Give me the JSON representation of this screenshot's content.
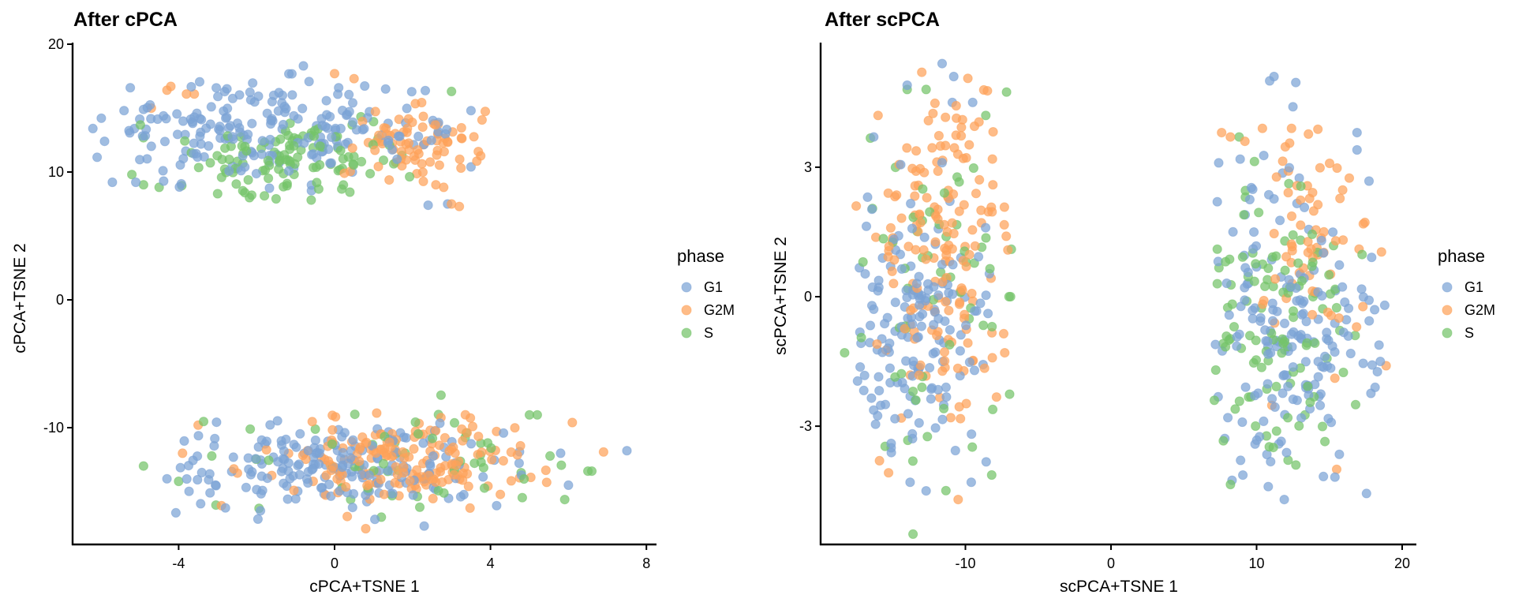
{
  "chart_data": [
    {
      "type": "scatter",
      "title": "After cPCA",
      "xlabel": "cPCA+TSNE 1",
      "ylabel": "cPCA+TSNE 2",
      "xlim": [
        -6.8,
        8.2
      ],
      "ylim": [
        -19.5,
        20
      ],
      "xticks": [
        -4,
        0,
        4,
        8
      ],
      "xtick_labels": [
        "-4",
        "0",
        "4",
        "8"
      ],
      "yticks": [
        -10,
        0,
        10,
        20
      ],
      "ytick_labels": [
        "-10",
        "0",
        "10",
        "20"
      ],
      "grid": false,
      "legend": {
        "title": "phase",
        "position": "right",
        "entries": [
          "G1",
          "G2M",
          "S"
        ]
      },
      "series": [
        {
          "name": "G1",
          "color": "#7BA3D5",
          "clusters": [
            {
              "cx": -2.2,
              "cy": 13.2,
              "sx": 1.9,
              "sy": 2.2,
              "n": 160,
              "xmin": -6.2,
              "xmax": 0.8,
              "ymin": 8.5,
              "ymax": 18.3
            },
            {
              "cx": 1.2,
              "cy": 13.0,
              "sx": 1.4,
              "sy": 1.6,
              "n": 40,
              "xmin": -0.5,
              "xmax": 3.6,
              "ymin": 7.3,
              "ymax": 16.8
            },
            {
              "cx": 0.0,
              "cy": -13.0,
              "sx": 2.2,
              "sy": 1.6,
              "n": 190,
              "xmin": -4.6,
              "xmax": 7.6,
              "ymin": -17.8,
              "ymax": -7.2
            }
          ],
          "points": [
            [
              -6.2,
              13.4
            ],
            [
              -5.9,
              12.4
            ],
            [
              -5.4,
              14.8
            ],
            [
              -5.7,
              9.2
            ],
            [
              -5.1,
              9.2
            ],
            [
              -4.4,
              10.1
            ],
            [
              -3.6,
              14.3
            ],
            [
              2.4,
              7.4
            ],
            [
              2.9,
              7.5
            ],
            [
              3.5,
              10.4
            ],
            [
              3.5,
              14.8
            ],
            [
              -0.8,
              18.3
            ],
            [
              7.5,
              -11.8
            ],
            [
              -4.3,
              -14.0
            ],
            [
              2.3,
              -17.7
            ],
            [
              -1.9,
              -16.5
            ],
            [
              6.0,
              -14.5
            ],
            [
              5.8,
              -12.0
            ]
          ]
        },
        {
          "name": "G2M",
          "color": "#FDA25A",
          "clusters": [
            {
              "cx": 2.2,
              "cy": 12.3,
              "sx": 1.1,
              "sy": 1.4,
              "n": 75,
              "xmin": 0.2,
              "xmax": 3.9,
              "ymin": 9.0,
              "ymax": 17.7
            },
            {
              "cx": 1.8,
              "cy": -12.6,
              "sx": 1.7,
              "sy": 1.8,
              "n": 170,
              "xmin": -3.5,
              "xmax": 6.9,
              "ymin": -17.9,
              "ymax": -7.2
            }
          ],
          "points": [
            [
              -4.3,
              16.4
            ],
            [
              -4.2,
              16.7
            ],
            [
              -3.8,
              16.1
            ],
            [
              -3.6,
              16.1
            ],
            [
              -4.7,
              15.0
            ],
            [
              0.0,
              17.7
            ],
            [
              0.5,
              17.3
            ],
            [
              2.6,
              9.0
            ],
            [
              2.8,
              8.8
            ],
            [
              3.0,
              7.5
            ],
            [
              3.2,
              7.3
            ],
            [
              -3.5,
              -9.8
            ],
            [
              -3.9,
              -12.0
            ],
            [
              -2.9,
              -16.1
            ],
            [
              6.9,
              -11.9
            ],
            [
              6.1,
              -9.6
            ],
            [
              0.8,
              -17.9
            ]
          ]
        },
        {
          "name": "S",
          "color": "#75C469",
          "clusters": [
            {
              "cx": -0.8,
              "cy": 11.2,
              "sx": 1.4,
              "sy": 1.6,
              "n": 110,
              "xmin": -5.2,
              "xmax": 2.4,
              "ymin": 7.8,
              "ymax": 18.0
            },
            {
              "cx": 1.6,
              "cy": -12.8,
              "sx": 2.0,
              "sy": 2.0,
              "n": 55,
              "xmin": -4.9,
              "xmax": 6.6,
              "ymin": -17.3,
              "ymax": -7.4
            }
          ],
          "points": [
            [
              -4.9,
              9.0
            ],
            [
              -5.2,
              9.8
            ],
            [
              -4.5,
              8.8
            ],
            [
              -3.0,
              8.3
            ],
            [
              -0.6,
              7.8
            ],
            [
              -1.5,
              7.9
            ],
            [
              3.0,
              16.3
            ],
            [
              -4.9,
              -13.0
            ],
            [
              -4.0,
              -14.2
            ],
            [
              6.6,
              -13.4
            ],
            [
              6.5,
              -13.4
            ],
            [
              5.2,
              -9.0
            ],
            [
              5.0,
              -9.0
            ],
            [
              1.2,
              -17.0
            ]
          ]
        }
      ]
    },
    {
      "type": "scatter",
      "title": "After scPCA",
      "xlabel": "scPCA+TSNE 1",
      "ylabel": "scPCA+TSNE 2",
      "xlim": [
        -20.0,
        20.9
      ],
      "ylim": [
        -5.8,
        5.95
      ],
      "xticks": [
        -10,
        0,
        10,
        20
      ],
      "xtick_labels": [
        "-10",
        "0",
        "10",
        "20"
      ],
      "yticks": [
        -3,
        0,
        3
      ],
      "ytick_labels": [
        "-3",
        "0",
        "3"
      ],
      "grid": false,
      "legend": {
        "title": "phase",
        "position": "right",
        "entries": [
          "G1",
          "G2M",
          "S"
        ]
      },
      "series": [
        {
          "name": "G1",
          "color": "#7BA3D5",
          "clusters": [
            {
              "cx": -13.3,
              "cy": -0.9,
              "sx": 2.6,
              "sy": 1.5,
              "n": 150,
              "xmin": -18.0,
              "xmax": -7.6,
              "ymin": -4.5,
              "ymax": 5.4
            },
            {
              "cx": 12.7,
              "cy": -0.8,
              "sx": 3.0,
              "sy": 1.8,
              "n": 175,
              "xmin": 7.0,
              "xmax": 18.8,
              "ymin": -4.7,
              "ymax": 5.1
            }
          ],
          "points": [
            [
              -11.6,
              5.4
            ],
            [
              -10.8,
              5.1
            ],
            [
              -14.0,
              4.9
            ],
            [
              -10.9,
              4.5
            ],
            [
              -9.5,
              4.5
            ],
            [
              -16.3,
              3.7
            ],
            [
              -15.1,
              -3.5
            ],
            [
              -15.1,
              -3.4
            ],
            [
              -12.7,
              -4.5
            ],
            [
              -13.8,
              -4.3
            ],
            [
              -9.6,
              -4.3
            ],
            [
              10.9,
              5.0
            ],
            [
              11.2,
              5.1
            ],
            [
              12.5,
              4.4
            ],
            [
              16.9,
              3.8
            ],
            [
              16.9,
              3.4
            ],
            [
              7.4,
              3.1
            ],
            [
              7.3,
              2.2
            ],
            [
              11.9,
              -4.7
            ],
            [
              10.8,
              -4.4
            ],
            [
              18.8,
              -0.2
            ],
            [
              18.5,
              -1.5
            ]
          ]
        },
        {
          "name": "G2M",
          "color": "#FDA25A",
          "clusters": [
            {
              "cx": -11.6,
              "cy": 1.0,
              "sx": 2.3,
              "sy": 1.9,
              "n": 165,
              "xmin": -17.6,
              "xmax": -7.0,
              "ymin": -4.7,
              "ymax": 5.2
            },
            {
              "cx": 14.0,
              "cy": 1.3,
              "sx": 1.8,
              "sy": 1.3,
              "n": 65,
              "xmin": 9.0,
              "xmax": 19.1,
              "ymin": -4.1,
              "ymax": 3.9
            }
          ],
          "points": [
            [
              -13.0,
              5.2
            ],
            [
              -16.0,
              4.2
            ],
            [
              -10.2,
              4.1
            ],
            [
              -17.5,
              2.1
            ],
            [
              -15.9,
              -3.8
            ],
            [
              -10.5,
              -4.7
            ],
            [
              -7.2,
              1.4
            ],
            [
              -7.3,
              -1.3
            ],
            [
              7.6,
              3.8
            ],
            [
              8.2,
              3.7
            ],
            [
              9.2,
              3.6
            ],
            [
              10.4,
              3.9
            ],
            [
              12.4,
              3.9
            ],
            [
              18.9,
              -1.6
            ],
            [
              15.5,
              -4.0
            ]
          ]
        },
        {
          "name": "S",
          "color": "#75C469",
          "clusters": [
            {
              "cx": -11.8,
              "cy": 0.3,
              "sx": 2.5,
              "sy": 1.8,
              "n": 60,
              "xmin": -18.4,
              "xmax": -6.8,
              "ymin": -5.5,
              "ymax": 4.9
            },
            {
              "cx": 11.4,
              "cy": -0.8,
              "sx": 2.8,
              "sy": 1.6,
              "n": 105,
              "xmin": 7.0,
              "xmax": 17.7,
              "ymin": -4.4,
              "ymax": 3.7
            }
          ],
          "points": [
            [
              -13.6,
              -5.5
            ],
            [
              -14.0,
              4.8
            ],
            [
              -12.7,
              4.8
            ],
            [
              -8.6,
              4.2
            ],
            [
              -18.3,
              -1.3
            ],
            [
              -6.9,
              0.0
            ],
            [
              -7.0,
              0.0
            ],
            [
              7.3,
              1.1
            ],
            [
              7.3,
              0.3
            ],
            [
              7.2,
              -1.7
            ],
            [
              7.1,
              -2.4
            ],
            [
              16.8,
              -2.5
            ],
            [
              12.7,
              -3.9
            ],
            [
              8.8,
              3.7
            ]
          ]
        }
      ]
    }
  ]
}
